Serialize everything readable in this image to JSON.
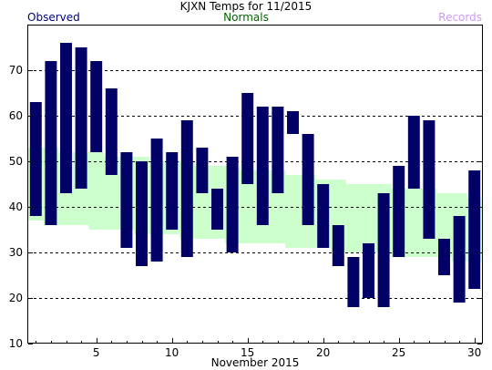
{
  "chart_data": {
    "type": "bar",
    "title": "KJXN Temps for 11/2015",
    "xlabel": "November 2015",
    "ylabel": "",
    "legend": [
      {
        "name": "Observed",
        "color": "#000080"
      },
      {
        "name": "Normals",
        "color": "#006400"
      },
      {
        "name": "Records",
        "color": "#cc99ee"
      }
    ],
    "colors": {
      "observed": "#000066",
      "normals": "#ccffcc",
      "grid": "#000000"
    },
    "grid": true,
    "ylim": [
      10,
      80
    ],
    "xlim": [
      0.5,
      30.5
    ],
    "x_ticks": [
      5,
      10,
      15,
      20,
      25,
      30
    ],
    "y_ticks": [
      10,
      20,
      30,
      40,
      50,
      60,
      70
    ],
    "days": [
      1,
      2,
      3,
      4,
      5,
      6,
      7,
      8,
      9,
      10,
      11,
      12,
      13,
      14,
      15,
      16,
      17,
      18,
      19,
      20,
      21,
      22,
      23,
      24,
      25,
      26,
      27,
      28,
      29,
      30
    ],
    "observed_high": [
      63,
      72,
      76,
      75,
      72,
      66,
      52,
      50,
      55,
      52,
      59,
      53,
      44,
      51,
      65,
      62,
      62,
      61,
      56,
      45,
      36,
      29,
      32,
      43,
      49,
      60,
      59,
      33,
      38,
      48
    ],
    "observed_low": [
      38,
      36,
      43,
      44,
      52,
      47,
      31,
      27,
      28,
      35,
      29,
      43,
      35,
      30,
      45,
      36,
      43,
      56,
      36,
      31,
      27,
      18,
      20,
      18,
      29,
      44,
      33,
      25,
      19,
      22
    ],
    "normal_high": [
      53,
      53,
      52,
      52,
      52,
      51,
      51,
      51,
      50,
      50,
      50,
      49,
      49,
      49,
      48,
      48,
      48,
      47,
      47,
      46,
      46,
      45,
      45,
      45,
      44,
      44,
      44,
      43,
      43,
      42
    ],
    "normal_low": [
      37,
      36,
      36,
      36,
      35,
      35,
      35,
      34,
      34,
      34,
      33,
      33,
      33,
      32,
      32,
      32,
      32,
      31,
      31,
      31,
      30,
      30,
      30,
      30,
      29,
      29,
      29,
      29,
      28,
      28
    ]
  }
}
